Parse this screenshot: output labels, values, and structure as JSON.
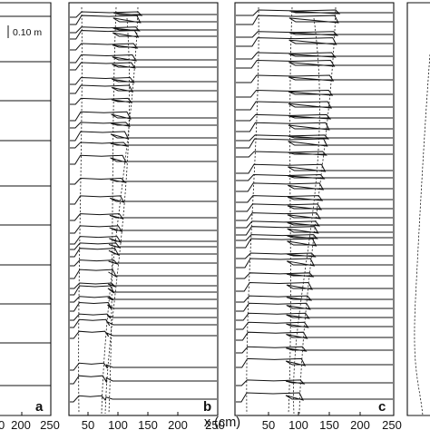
{
  "figure": {
    "x_axis_title": "x (cm)",
    "scale_bar_label": "0.10 m"
  },
  "panels": [
    {
      "id": "a",
      "label": "a",
      "tick_labels": [
        "0",
        "200",
        "250"
      ]
    },
    {
      "id": "b",
      "label": "b",
      "tick_labels": [
        "50",
        "100",
        "150",
        "200",
        "250"
      ]
    },
    {
      "id": "c",
      "label": "c",
      "tick_labels": [
        "50",
        "100",
        "150",
        "200",
        "250"
      ]
    },
    {
      "id": "d",
      "label": "",
      "tick_labels": []
    }
  ]
}
